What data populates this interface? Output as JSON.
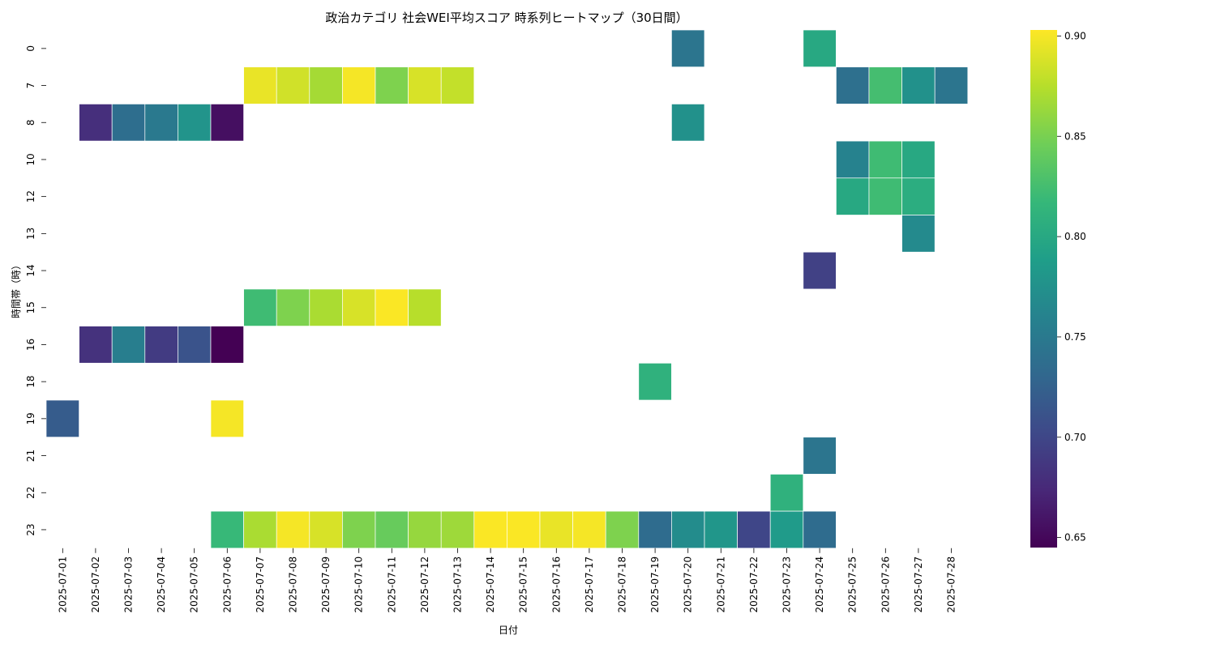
{
  "chart_data": {
    "type": "heatmap",
    "title": "政治カテゴリ 社会WEI平均スコア 時系列ヒートマップ（30日間）",
    "xlabel": "日付",
    "ylabel": "時間帯（時）",
    "x": [
      "2025-07-01",
      "2025-07-02",
      "2025-07-03",
      "2025-07-04",
      "2025-07-05",
      "2025-07-06",
      "2025-07-07",
      "2025-07-08",
      "2025-07-09",
      "2025-07-10",
      "2025-07-11",
      "2025-07-12",
      "2025-07-13",
      "2025-07-14",
      "2025-07-15",
      "2025-07-16",
      "2025-07-17",
      "2025-07-18",
      "2025-07-19",
      "2025-07-20",
      "2025-07-21",
      "2025-07-22",
      "2025-07-23",
      "2025-07-24",
      "2025-07-25",
      "2025-07-26",
      "2025-07-27",
      "2025-07-28"
    ],
    "y": [
      "0",
      "7",
      "8",
      "10",
      "12",
      "13",
      "14",
      "15",
      "16",
      "18",
      "19",
      "21",
      "22",
      "23"
    ],
    "colormap": "viridis",
    "vmin": 0.645,
    "vmax": 0.903,
    "colorbar_ticks": [
      "0.65",
      "0.70",
      "0.75",
      "0.80",
      "0.85",
      "0.90"
    ],
    "grid": false,
    "cells": [
      {
        "x": "2025-07-20",
        "y": "0",
        "v": 0.745
      },
      {
        "x": "2025-07-24",
        "y": "0",
        "v": 0.8
      },
      {
        "x": "2025-07-07",
        "y": "7",
        "v": 0.895
      },
      {
        "x": "2025-07-08",
        "y": "7",
        "v": 0.885
      },
      {
        "x": "2025-07-09",
        "y": "7",
        "v": 0.868
      },
      {
        "x": "2025-07-10",
        "y": "7",
        "v": 0.9
      },
      {
        "x": "2025-07-11",
        "y": "7",
        "v": 0.852
      },
      {
        "x": "2025-07-12",
        "y": "7",
        "v": 0.888
      },
      {
        "x": "2025-07-13",
        "y": "7",
        "v": 0.88
      },
      {
        "x": "2025-07-25",
        "y": "7",
        "v": 0.74
      },
      {
        "x": "2025-07-26",
        "y": "7",
        "v": 0.825
      },
      {
        "x": "2025-07-27",
        "y": "7",
        "v": 0.775
      },
      {
        "x": "2025-07-28",
        "y": "7",
        "v": 0.745
      },
      {
        "x": "2025-07-02",
        "y": "8",
        "v": 0.68
      },
      {
        "x": "2025-07-03",
        "y": "8",
        "v": 0.738
      },
      {
        "x": "2025-07-04",
        "y": "8",
        "v": 0.75
      },
      {
        "x": "2025-07-05",
        "y": "8",
        "v": 0.778
      },
      {
        "x": "2025-07-06",
        "y": "8",
        "v": 0.655
      },
      {
        "x": "2025-07-20",
        "y": "8",
        "v": 0.775
      },
      {
        "x": "2025-07-25",
        "y": "10",
        "v": 0.76
      },
      {
        "x": "2025-07-26",
        "y": "10",
        "v": 0.822
      },
      {
        "x": "2025-07-27",
        "y": "10",
        "v": 0.8
      },
      {
        "x": "2025-07-25",
        "y": "12",
        "v": 0.8
      },
      {
        "x": "2025-07-26",
        "y": "12",
        "v": 0.822
      },
      {
        "x": "2025-07-27",
        "y": "12",
        "v": 0.805
      },
      {
        "x": "2025-07-27",
        "y": "13",
        "v": 0.768
      },
      {
        "x": "2025-07-24",
        "y": "14",
        "v": 0.695
      },
      {
        "x": "2025-07-07",
        "y": "15",
        "v": 0.822
      },
      {
        "x": "2025-07-08",
        "y": "15",
        "v": 0.852
      },
      {
        "x": "2025-07-09",
        "y": "15",
        "v": 0.87
      },
      {
        "x": "2025-07-10",
        "y": "15",
        "v": 0.888
      },
      {
        "x": "2025-07-11",
        "y": "15",
        "v": 0.902
      },
      {
        "x": "2025-07-12",
        "y": "15",
        "v": 0.875
      },
      {
        "x": "2025-07-02",
        "y": "16",
        "v": 0.682
      },
      {
        "x": "2025-07-03",
        "y": "16",
        "v": 0.755
      },
      {
        "x": "2025-07-04",
        "y": "16",
        "v": 0.69
      },
      {
        "x": "2025-07-05",
        "y": "16",
        "v": 0.712
      },
      {
        "x": "2025-07-06",
        "y": "16",
        "v": 0.645
      },
      {
        "x": "2025-07-19",
        "y": "18",
        "v": 0.81
      },
      {
        "x": "2025-07-01",
        "y": "19",
        "v": 0.72
      },
      {
        "x": "2025-07-06",
        "y": "19",
        "v": 0.9
      },
      {
        "x": "2025-07-24",
        "y": "21",
        "v": 0.745
      },
      {
        "x": "2025-07-23",
        "y": "22",
        "v": 0.81
      },
      {
        "x": "2025-07-06",
        "y": "23",
        "v": 0.818
      },
      {
        "x": "2025-07-07",
        "y": "23",
        "v": 0.87
      },
      {
        "x": "2025-07-08",
        "y": "23",
        "v": 0.9
      },
      {
        "x": "2025-07-09",
        "y": "23",
        "v": 0.888
      },
      {
        "x": "2025-07-10",
        "y": "23",
        "v": 0.852
      },
      {
        "x": "2025-07-11",
        "y": "23",
        "v": 0.842
      },
      {
        "x": "2025-07-12",
        "y": "23",
        "v": 0.862
      },
      {
        "x": "2025-07-13",
        "y": "23",
        "v": 0.865
      },
      {
        "x": "2025-07-14",
        "y": "23",
        "v": 0.902
      },
      {
        "x": "2025-07-15",
        "y": "23",
        "v": 0.902
      },
      {
        "x": "2025-07-16",
        "y": "23",
        "v": 0.895
      },
      {
        "x": "2025-07-17",
        "y": "23",
        "v": 0.9
      },
      {
        "x": "2025-07-18",
        "y": "23",
        "v": 0.852
      },
      {
        "x": "2025-07-19",
        "y": "23",
        "v": 0.735
      },
      {
        "x": "2025-07-20",
        "y": "23",
        "v": 0.77
      },
      {
        "x": "2025-07-21",
        "y": "23",
        "v": 0.78
      },
      {
        "x": "2025-07-22",
        "y": "23",
        "v": 0.7
      },
      {
        "x": "2025-07-23",
        "y": "23",
        "v": 0.785
      },
      {
        "x": "2025-07-24",
        "y": "23",
        "v": 0.735
      }
    ]
  }
}
